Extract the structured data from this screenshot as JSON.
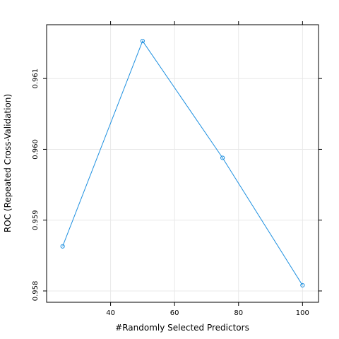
{
  "chart_data": {
    "type": "line",
    "xlabel": "#Randomly Selected Predictors",
    "ylabel": "ROC (Repeated Cross-Validation)",
    "x": [
      25,
      50,
      75,
      100
    ],
    "series": [
      {
        "values": [
          0.95863,
          0.96153,
          0.95988,
          0.95808
        ],
        "color": "#1e90e0"
      }
    ],
    "xlim": [
      20,
      105
    ],
    "ylim": [
      0.95784,
      0.96176
    ],
    "x_ticks": [
      40,
      60,
      80,
      100
    ],
    "x_tick_labels": [
      "40",
      "60",
      "80",
      "100"
    ],
    "y_ticks": [
      0.958,
      0.959,
      0.96,
      0.961
    ],
    "y_tick_labels": [
      "0.958",
      "0.959",
      "0.960",
      "0.961"
    ],
    "grid": true,
    "grid_color": "#e8e8e8",
    "frame_color": "#000000",
    "marker": "open-circle"
  }
}
